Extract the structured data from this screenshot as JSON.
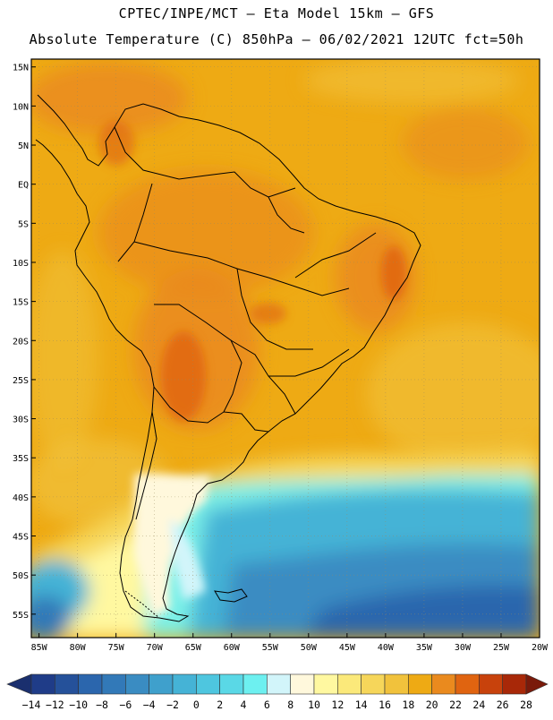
{
  "header": {
    "line1": "CPTEC/INPE/MCT –  Eta Model 15km – GFS",
    "line2": "Absolute Temperature (C) 850hPa – 06/02/2021 12UTC fct=50h"
  },
  "map": {
    "lat_labels": [
      "15N",
      "10N",
      "5N",
      "EQ",
      "5S",
      "10S",
      "15S",
      "20S",
      "25S",
      "30S",
      "35S",
      "40S",
      "45S",
      "50S",
      "55S"
    ],
    "lat_values": [
      15,
      10,
      5,
      0,
      -5,
      -10,
      -15,
      -20,
      -25,
      -30,
      -35,
      -40,
      -45,
      -50,
      -55
    ],
    "lon_labels": [
      "85W",
      "80W",
      "75W",
      "70W",
      "65W",
      "60W",
      "55W",
      "50W",
      "45W",
      "40W",
      "35W",
      "30W",
      "25W",
      "20W"
    ],
    "lon_values": [
      -85,
      -80,
      -75,
      -70,
      -65,
      -60,
      -55,
      -50,
      -45,
      -40,
      -35,
      -30,
      -25,
      -20
    ],
    "lon_range": [
      -86,
      -20
    ],
    "lat_range": [
      -58,
      16
    ]
  },
  "colorbar": {
    "labels": [
      "-14",
      "-12",
      "-10",
      "-8",
      "-6",
      "-4",
      "-2",
      "0",
      "2",
      "4",
      "6",
      "8",
      "10",
      "12",
      "14",
      "16",
      "18",
      "20",
      "22",
      "24",
      "26",
      "28"
    ],
    "colors": [
      "#1f3c88",
      "#25519a",
      "#2b66ad",
      "#3279b8",
      "#3a8cc2",
      "#3fa0cc",
      "#45b3d6",
      "#4ec6df",
      "#5ad8e6",
      "#6df0f0",
      "#d2f5fa",
      "#fff8dc",
      "#fff8a0",
      "#fbe97a",
      "#f6d65a",
      "#f1c23c",
      "#eeaa14",
      "#ea8a1e",
      "#e06410",
      "#c8420c",
      "#a82808",
      "#7a1a0a"
    ]
  }
}
